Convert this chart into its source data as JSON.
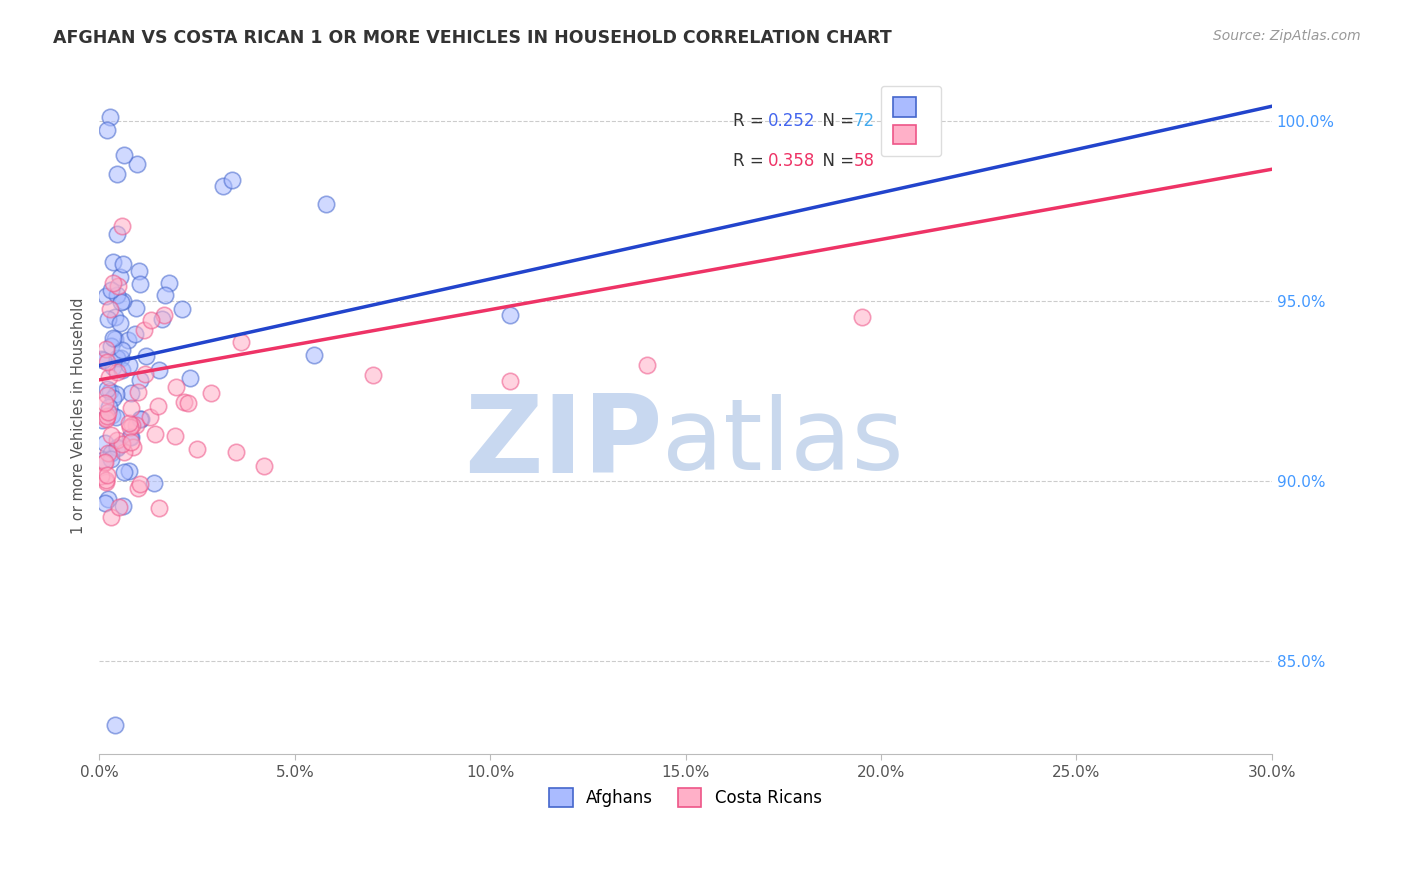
{
  "title": "AFGHAN VS COSTA RICAN 1 OR MORE VEHICLES IN HOUSEHOLD CORRELATION CHART",
  "source": "Source: ZipAtlas.com",
  "ylabel_label": "1 or more Vehicles in Household",
  "yaxis_labels": [
    "100.0%",
    "95.0%",
    "90.0%",
    "85.0%"
  ],
  "yaxis_values": [
    1.0,
    0.95,
    0.9,
    0.85
  ],
  "xmin": 0.0,
  "xmax": 30.0,
  "ymin": 0.824,
  "ymax": 1.012,
  "blue_face_color": "#AABBFF",
  "pink_face_color": "#FFB0C8",
  "blue_edge_color": "#4466CC",
  "pink_edge_color": "#EE5588",
  "blue_line_color": "#2244CC",
  "pink_line_color": "#EE3366",
  "watermark_zip_color": "#C8D8F0",
  "watermark_atlas_color": "#B8CCE8",
  "grid_color": "#CCCCCC",
  "title_color": "#333333",
  "source_color": "#999999",
  "blue_R": 0.252,
  "blue_N": 72,
  "pink_R": 0.358,
  "pink_N": 58,
  "legend_r_blue": "#4466EE",
  "legend_n_blue": "#44AAEE",
  "legend_r_pink": "#EE3366",
  "legend_n_pink": "#EE3366"
}
